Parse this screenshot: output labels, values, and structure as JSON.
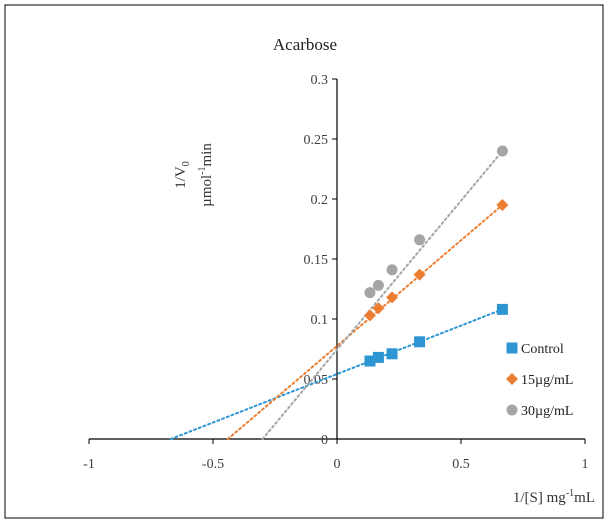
{
  "chart_data": {
    "type": "scatter",
    "title": "Acarbose",
    "ylabel_line1": "1/V",
    "ylabel_sub": "0",
    "ylabel_line2_pre": "µmol",
    "ylabel_line2_sup": "-1",
    "ylabel_line2_post": "min",
    "xlabel_pre": "1/[S] mg",
    "xlabel_sup": "-1",
    "xlabel_post": "mL",
    "xlim": [
      -1,
      1
    ],
    "ylim": [
      0,
      0.3
    ],
    "x_ticks": [
      -1,
      -0.5,
      0,
      0.5,
      1
    ],
    "x_tick_labels": [
      "-1",
      "-0.5",
      "0",
      "0.5",
      "1"
    ],
    "y_ticks": [
      0,
      0.05,
      0.1,
      0.15,
      0.2,
      0.25,
      0.3
    ],
    "y_tick_labels": [
      "0",
      "0.05",
      "0.1",
      "0.15",
      "0.2",
      "0.25",
      "0.3"
    ],
    "grid": false,
    "legend_position": "bottom-right",
    "series": [
      {
        "name": "Control",
        "marker": "square",
        "color": "#2e95d3",
        "x": [
          0.133,
          0.167,
          0.222,
          0.333,
          0.667
        ],
        "y": [
          0.065,
          0.068,
          0.071,
          0.081,
          0.108
        ],
        "trendline": {
          "x": [
            -0.67,
            0.667
          ],
          "y": [
            0.0,
            0.108
          ]
        }
      },
      {
        "name": "15µg/mL",
        "marker": "diamond",
        "color": "#ed7d31",
        "x": [
          0.133,
          0.167,
          0.222,
          0.333,
          0.667
        ],
        "y": [
          0.103,
          0.109,
          0.118,
          0.137,
          0.195
        ],
        "trendline": {
          "x": [
            -0.44,
            0.667
          ],
          "y": [
            0.0,
            0.195
          ]
        }
      },
      {
        "name": "30µg/mL",
        "marker": "circle",
        "color": "#a5a5a5",
        "x": [
          0.133,
          0.167,
          0.222,
          0.333,
          0.667
        ],
        "y": [
          0.122,
          0.128,
          0.141,
          0.166,
          0.24
        ],
        "trendline": {
          "x": [
            -0.3,
            0.667
          ],
          "y": [
            0.0,
            0.24
          ]
        }
      }
    ]
  }
}
